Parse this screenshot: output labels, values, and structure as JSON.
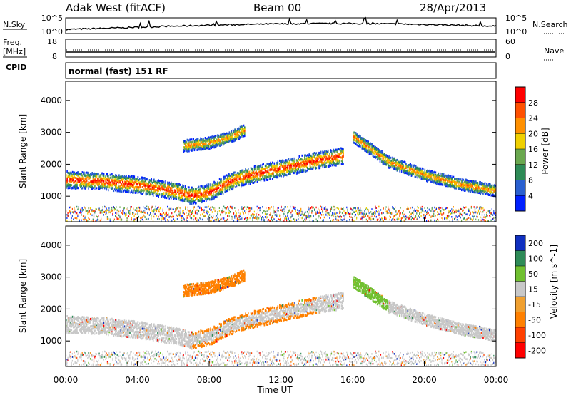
{
  "header": {
    "station": "Adak West (fitACF)",
    "beam": "Beam 00",
    "date": "28/Apr/2013"
  },
  "strips": {
    "nsky_label": "N.Sky",
    "nsky_ticks": [
      "10^5",
      "10^0"
    ],
    "nsearch_label": "N.Search",
    "nsearch_ticks": [
      "10^5",
      "10^0"
    ],
    "freq_label": "Freq.",
    "freq_unit": "[MHz]",
    "freq_ticks": [
      "18",
      "8"
    ],
    "nave_label": "Nave",
    "nave_ticks": [
      "60",
      "0"
    ],
    "cpid_label": "CPID",
    "cpid_value": "normal (fast) 151 RF"
  },
  "chart_data": [
    {
      "type": "heatmap",
      "panel": "power",
      "xlabel": "",
      "ylabel": "Slant Range [km]",
      "xlim_hours": [
        0,
        24
      ],
      "ylim_km": [
        200,
        4600
      ],
      "yticks": [
        "1000",
        "2000",
        "3000",
        "4000"
      ],
      "colorbar_label": "Power [dB]",
      "colorbar_ticks": [
        "4",
        "8",
        "12",
        "16",
        "20",
        "24",
        "28"
      ],
      "colorbar_colors": [
        "#0020ff",
        "#2a60d0",
        "#2e8b57",
        "#6aa84f",
        "#f0d000",
        "#ff9000",
        "#ff5000",
        "#ff0000"
      ],
      "echo_bands": [
        {
          "name": "main",
          "path": [
            [
              0,
              1550
            ],
            [
              2,
              1500
            ],
            [
              4,
              1380
            ],
            [
              6,
              1200
            ],
            [
              7,
              1050
            ],
            [
              8,
              1150
            ],
            [
              9,
              1450
            ],
            [
              10,
              1650
            ],
            [
              12,
              1900
            ],
            [
              14,
              2150
            ],
            [
              15.5,
              2300
            ]
          ]
        },
        {
          "name": "upper",
          "path": [
            [
              6.5,
              2600
            ],
            [
              8,
              2700
            ],
            [
              9,
              2850
            ],
            [
              10,
              3100
            ]
          ]
        },
        {
          "name": "late",
          "path": [
            [
              16,
              2900
            ],
            [
              17,
              2500
            ],
            [
              18,
              2100
            ],
            [
              20,
              1700
            ],
            [
              22,
              1400
            ],
            [
              24,
              1200
            ]
          ]
        }
      ]
    },
    {
      "type": "heatmap",
      "panel": "velocity",
      "xlabel": "Time UT",
      "ylabel": "Slant Range [km]",
      "xlim_hours": [
        0,
        24
      ],
      "ylim_km": [
        200,
        4600
      ],
      "xticks": [
        "00:00",
        "04:00",
        "08:00",
        "12:00",
        "16:00",
        "20:00",
        "00:00"
      ],
      "yticks": [
        "1000",
        "2000",
        "3000",
        "4000"
      ],
      "colorbar_label": "Velocity [m s^-1]",
      "colorbar_ticks": [
        "200",
        "100",
        "50",
        "15",
        "-15",
        "-50",
        "-100",
        "-200"
      ],
      "colorbar_colors": [
        "#1030c0",
        "#2e8b57",
        "#70c030",
        "#c8c8c8",
        "#f0a030",
        "#ff8000",
        "#ff4000",
        "#ff0000"
      ]
    }
  ]
}
